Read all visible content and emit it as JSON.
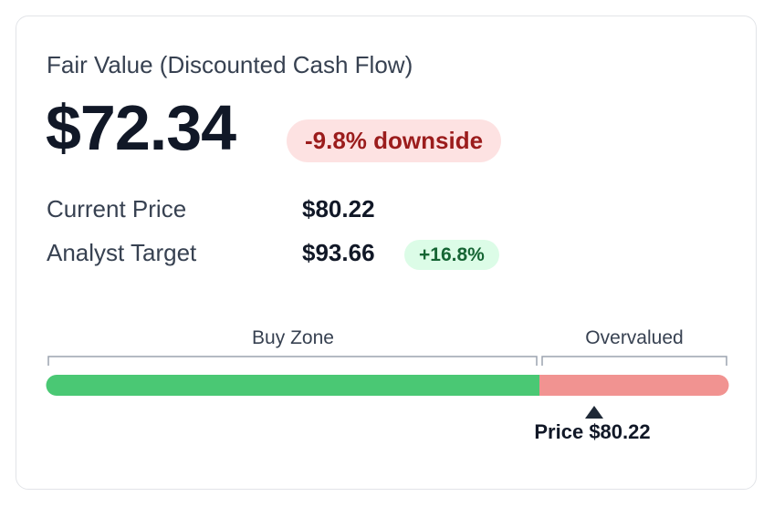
{
  "header": {
    "title": "Fair Value (Discounted Cash Flow)"
  },
  "fair_value": {
    "value": "$72.34",
    "badge": "-9.8% downside"
  },
  "rows": [
    {
      "label": "Current Price",
      "value": "$80.22"
    },
    {
      "label": "Analyst Target",
      "value": "$93.66",
      "badge": "+16.8%"
    }
  ],
  "zones": {
    "labels": [
      "Buy Zone",
      "Overvalued"
    ],
    "marker_label": "Price $80.22"
  }
}
